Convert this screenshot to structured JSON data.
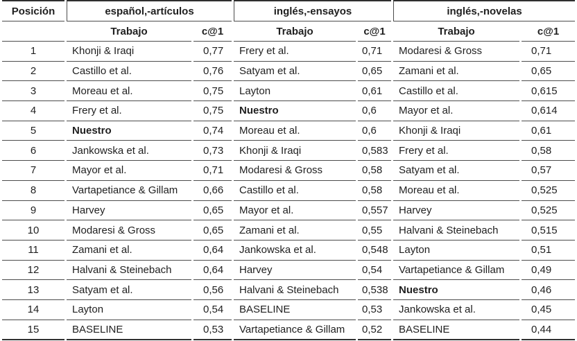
{
  "table": {
    "columns": {
      "position": "Posición",
      "work": "Trabajo",
      "score": "c@1"
    },
    "groups": [
      {
        "label": "español,-artículos"
      },
      {
        "label": "inglés,-ensayos"
      },
      {
        "label": "inglés,-novelas"
      }
    ],
    "rows": [
      {
        "pos": "1",
        "cells": [
          {
            "work": "Khonji & Iraqi",
            "score": "0,77",
            "bold": false
          },
          {
            "work": "Frery et al.",
            "score": "0,71",
            "bold": false
          },
          {
            "work": "Modaresi & Gross",
            "score": "0,71",
            "bold": false
          }
        ]
      },
      {
        "pos": "2",
        "cells": [
          {
            "work": "Castillo et al.",
            "score": "0,76",
            "bold": false
          },
          {
            "work": "Satyam et al.",
            "score": "0,65",
            "bold": false
          },
          {
            "work": "Zamani et al.",
            "score": "0,65",
            "bold": false
          }
        ]
      },
      {
        "pos": "3",
        "cells": [
          {
            "work": "Moreau et al.",
            "score": "0,75",
            "bold": false
          },
          {
            "work": "Layton",
            "score": "0,61",
            "bold": false
          },
          {
            "work": "Castillo et al.",
            "score": "0,615",
            "bold": false
          }
        ]
      },
      {
        "pos": "4",
        "cells": [
          {
            "work": "Frery et al.",
            "score": "0,75",
            "bold": false
          },
          {
            "work": "Nuestro",
            "score": "0,6",
            "bold": true
          },
          {
            "work": "Mayor et al.",
            "score": "0,614",
            "bold": false
          }
        ]
      },
      {
        "pos": "5",
        "cells": [
          {
            "work": "Nuestro",
            "score": "0,74",
            "bold": true
          },
          {
            "work": "Moreau et al.",
            "score": "0,6",
            "bold": false
          },
          {
            "work": "Khonji & Iraqi",
            "score": "0,61",
            "bold": false
          }
        ]
      },
      {
        "pos": "6",
        "cells": [
          {
            "work": "Jankowska et al.",
            "score": "0,73",
            "bold": false
          },
          {
            "work": "Khonji & Iraqi",
            "score": "0,583",
            "bold": false
          },
          {
            "work": "Frery et al.",
            "score": "0,58",
            "bold": false
          }
        ]
      },
      {
        "pos": "7",
        "cells": [
          {
            "work": "Mayor et al.",
            "score": "0,71",
            "bold": false
          },
          {
            "work": "Modaresi & Gross",
            "score": "0,58",
            "bold": false
          },
          {
            "work": "Satyam et al.",
            "score": "0,57",
            "bold": false
          }
        ]
      },
      {
        "pos": "8",
        "cells": [
          {
            "work": "Vartapetiance & Gillam",
            "score": "0,66",
            "bold": false
          },
          {
            "work": "Castillo et al.",
            "score": "0,58",
            "bold": false
          },
          {
            "work": "Moreau et al.",
            "score": "0,525",
            "bold": false
          }
        ]
      },
      {
        "pos": "9",
        "cells": [
          {
            "work": "Harvey",
            "score": "0,65",
            "bold": false
          },
          {
            "work": "Mayor et al.",
            "score": "0,557",
            "bold": false
          },
          {
            "work": "Harvey",
            "score": "0,525",
            "bold": false
          }
        ]
      },
      {
        "pos": "10",
        "cells": [
          {
            "work": "Modaresi & Gross",
            "score": "0,65",
            "bold": false
          },
          {
            "work": "Zamani et al.",
            "score": "0,55",
            "bold": false
          },
          {
            "work": "Halvani & Steinebach",
            "score": "0,515",
            "bold": false
          }
        ]
      },
      {
        "pos": "11",
        "cells": [
          {
            "work": "Zamani et al.",
            "score": "0,64",
            "bold": false
          },
          {
            "work": "Jankowska et al.",
            "score": "0,548",
            "bold": false
          },
          {
            "work": "Layton",
            "score": "0,51",
            "bold": false
          }
        ]
      },
      {
        "pos": "12",
        "cells": [
          {
            "work": "Halvani & Steinebach",
            "score": "0,64",
            "bold": false
          },
          {
            "work": "Harvey",
            "score": "0,54",
            "bold": false
          },
          {
            "work": "Vartapetiance & Gillam",
            "score": "0,49",
            "bold": false
          }
        ]
      },
      {
        "pos": "13",
        "cells": [
          {
            "work": "Satyam et al.",
            "score": "0,56",
            "bold": false
          },
          {
            "work": "Halvani & Steinebach",
            "score": "0,538",
            "bold": false
          },
          {
            "work": "Nuestro",
            "score": "0,46",
            "bold": true
          }
        ]
      },
      {
        "pos": "14",
        "cells": [
          {
            "work": "Layton",
            "score": "0,54",
            "bold": false
          },
          {
            "work": "BASELINE",
            "score": "0,53",
            "bold": false
          },
          {
            "work": "Jankowska et al.",
            "score": "0,45",
            "bold": false
          }
        ]
      },
      {
        "pos": "15",
        "cells": [
          {
            "work": "BASELINE",
            "score": "0,53",
            "bold": false
          },
          {
            "work": "Vartapetiance & Gillam",
            "score": "0,52",
            "bold": false
          },
          {
            "work": "BASELINE",
            "score": "0,44",
            "bold": false
          }
        ]
      }
    ]
  }
}
